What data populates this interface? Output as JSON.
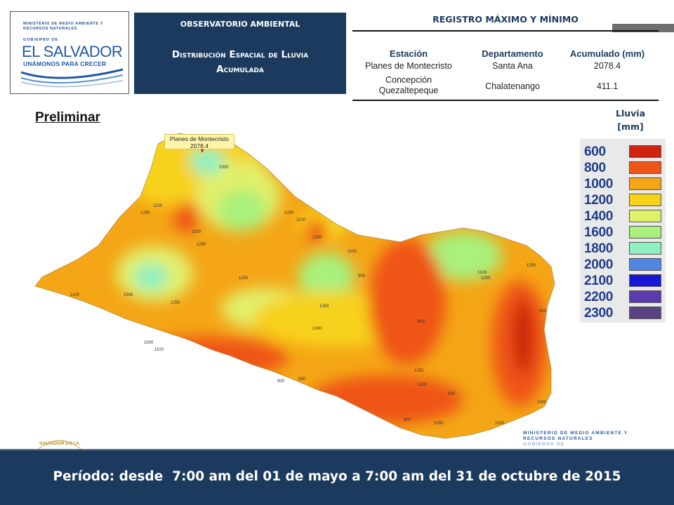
{
  "logo": {
    "ministry": "MINISTERIO DE MEDIO AMBIENTE Y RECURSOS NATURALES",
    "gobierno": "GOBIERNO DE",
    "country": "EL SALVADOR",
    "slogan": "UNÁMONOS PARA CRECER"
  },
  "header": {
    "observatory": "OBSERVATORIO AMBIENTAL",
    "title": "Distribución Espacial de Lluvia Acumulada"
  },
  "record_table": {
    "title": "REGISTRO MÁXIMO Y MÍNIMO",
    "columns": [
      "Estación",
      "Departamento",
      "Acumulado (mm)"
    ],
    "rows": [
      [
        "Planes de Montecristo",
        "Santa Ana",
        "2078.4"
      ],
      [
        "Concepción Quezaltepeque",
        "Chalatenango",
        "411.1"
      ]
    ]
  },
  "map": {
    "status": "Preliminar",
    "callout_station": "Planes de Montecristo",
    "callout_value": "2078.4",
    "contour_labels": [
      "1500",
      "1250",
      "1100",
      "1250",
      "1100",
      "1250",
      "1100",
      "1500",
      "1250",
      "1250",
      "1100",
      "1250",
      "1000",
      "1100",
      "1000",
      "900",
      "900",
      "1250",
      "1100",
      "900",
      "1250",
      "1100",
      "900",
      "1000",
      "900",
      "1000",
      "1000",
      "800",
      "900",
      "1100",
      "1250",
      "1250",
      "800"
    ]
  },
  "legend": {
    "title_line1": "Lluvia",
    "title_line2": "[mm]",
    "items": [
      {
        "label": "600",
        "color": "#cc2410"
      },
      {
        "label": "800",
        "color": "#ef5516"
      },
      {
        "label": "1000",
        "color": "#f4a616"
      },
      {
        "label": "1200",
        "color": "#f7d21c"
      },
      {
        "label": "1400",
        "color": "#e2ef6a"
      },
      {
        "label": "1600",
        "color": "#a9f07c"
      },
      {
        "label": "1800",
        "color": "#8ff0bf"
      },
      {
        "label": "2000",
        "color": "#4f86e2"
      },
      {
        "label": "2100",
        "color": "#1717d6"
      },
      {
        "label": "2200",
        "color": "#5a3cae"
      },
      {
        "label": "2300",
        "color": "#5b4382"
      }
    ]
  },
  "footer": {
    "emblem_text": "SALVADOR EN LA",
    "ministry_text": "MINISTERIO DE MEDIO AMBIENTE Y RECURSOS NATURALES",
    "gobierno_text": "GOBIERNO DE",
    "period": "Período: desde  7:00 am del 01 de mayo a 7:00 am del 31 de octubre de 2015"
  }
}
